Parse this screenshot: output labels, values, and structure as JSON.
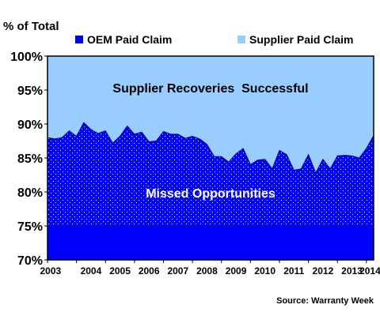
{
  "chart_data": {
    "type": "area",
    "ylabel": "% of Total",
    "source": "Source: Warranty Week",
    "ylim": [
      70,
      100
    ],
    "y_ticks": [
      "70%",
      "75%",
      "80%",
      "85%",
      "90%",
      "95%",
      "100%"
    ],
    "x_ticks": [
      "2003",
      "2004",
      "2005",
      "2006",
      "2007",
      "2008",
      "2009",
      "2010",
      "2011",
      "2012",
      "2013",
      "2014"
    ],
    "xlim": [
      2003,
      2014.25
    ],
    "legend_position": "top",
    "annotations": {
      "upper": "Supplier Recoveries  Successful",
      "lower": "Missed Opportunities"
    },
    "reference_level": 75,
    "series": [
      {
        "name": "OEM Paid Claim",
        "color": "#0000ff",
        "values_note": "quarterly share of claims paid by OEM (%)",
        "x": [
          2003.0,
          2003.25,
          2003.5,
          2003.75,
          2004.0,
          2004.25,
          2004.5,
          2004.75,
          2005.0,
          2005.25,
          2005.5,
          2005.75,
          2006.0,
          2006.25,
          2006.5,
          2006.75,
          2007.0,
          2007.25,
          2007.5,
          2007.75,
          2008.0,
          2008.25,
          2008.5,
          2008.75,
          2009.0,
          2009.25,
          2009.5,
          2009.75,
          2010.0,
          2010.25,
          2010.5,
          2010.75,
          2011.0,
          2011.25,
          2011.5,
          2011.75,
          2012.0,
          2012.25,
          2012.5,
          2012.75,
          2013.0,
          2013.25,
          2013.5,
          2013.75,
          2014.0,
          2014.25
        ],
        "values": [
          88.0,
          87.8,
          88.0,
          89.0,
          88.2,
          90.2,
          89.2,
          88.6,
          89.0,
          87.2,
          88.2,
          89.7,
          88.5,
          88.8,
          87.4,
          87.5,
          88.9,
          88.5,
          88.5,
          87.9,
          88.2,
          87.8,
          87.0,
          85.2,
          85.2,
          84.4,
          85.6,
          86.4,
          84.0,
          84.7,
          84.8,
          83.4,
          86.1,
          85.5,
          83.2,
          83.4,
          85.5,
          82.8,
          84.8,
          83.4,
          85.3,
          85.4,
          85.3,
          85.0,
          86.4,
          88.3
        ]
      },
      {
        "name": "Supplier Paid Claim",
        "color": "#99ccff",
        "values_note": "remainder to 100%"
      }
    ]
  }
}
